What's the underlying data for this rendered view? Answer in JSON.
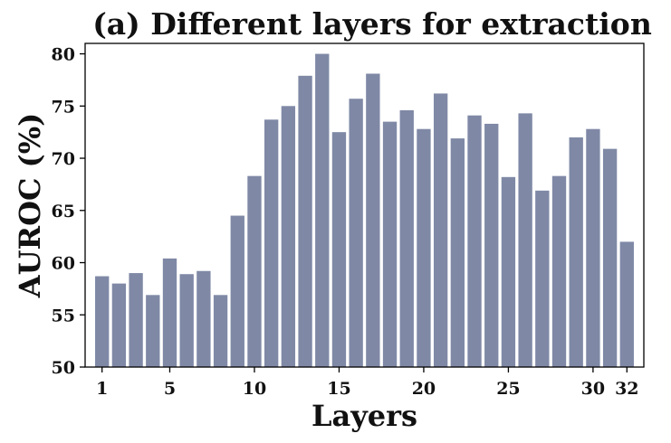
{
  "chart_data": {
    "type": "bar",
    "title": "(a) Different layers for extraction",
    "xlabel": "Layers",
    "ylabel": "AUROC (%)",
    "ylim": [
      50,
      81
    ],
    "xlim": [
      0,
      33
    ],
    "bar_color": "#7f89a6",
    "yticks": [
      50,
      55,
      60,
      65,
      70,
      75,
      80
    ],
    "xticks": [
      1,
      5,
      10,
      15,
      20,
      25,
      30,
      32
    ],
    "x": [
      1,
      2,
      3,
      4,
      5,
      6,
      7,
      8,
      9,
      10,
      11,
      12,
      13,
      14,
      15,
      16,
      17,
      18,
      19,
      20,
      21,
      22,
      23,
      24,
      25,
      26,
      27,
      28,
      29,
      30,
      31,
      32
    ],
    "values": [
      58.7,
      58.0,
      59.0,
      56.9,
      60.4,
      58.9,
      59.2,
      56.9,
      64.5,
      68.3,
      73.7,
      75.0,
      77.9,
      80.0,
      72.5,
      75.7,
      78.1,
      73.5,
      74.6,
      72.8,
      76.2,
      71.9,
      74.1,
      73.3,
      68.2,
      74.3,
      66.9,
      68.3,
      72.0,
      72.8,
      70.9,
      62.0
    ],
    "grid": false,
    "legend": "none"
  }
}
